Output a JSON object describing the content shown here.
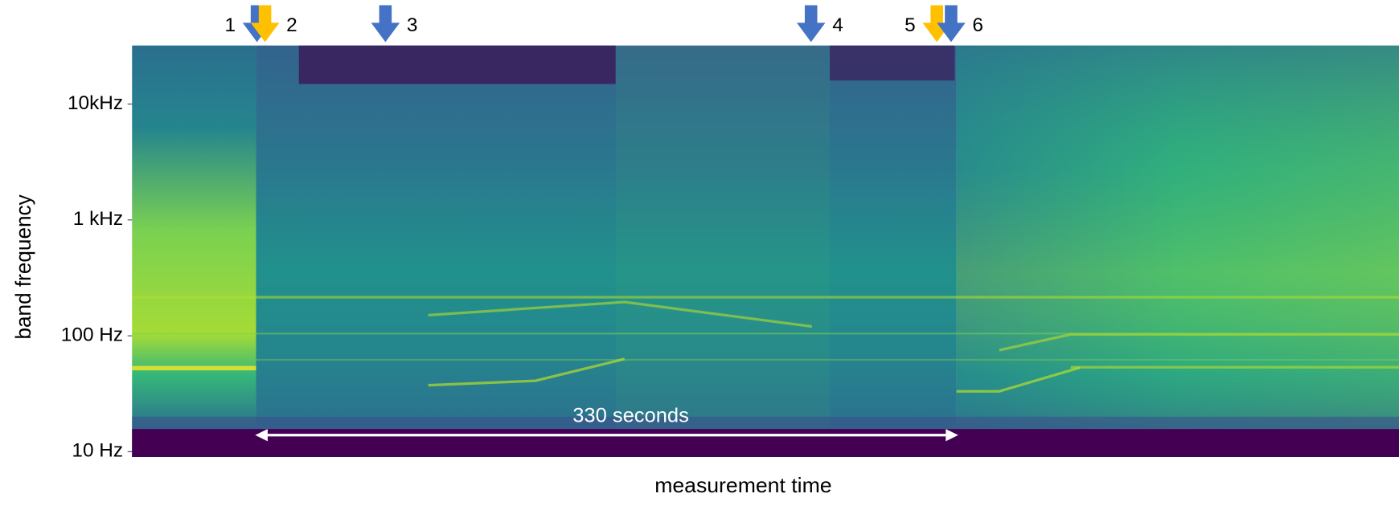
{
  "chart_data": {
    "type": "spectrogram",
    "x_label": "measurement time",
    "y_label": "band frequency",
    "y_log": true,
    "ylim": [
      9,
      32000
    ],
    "yticks": [
      {
        "value": 10,
        "label": "10 Hz"
      },
      {
        "value": 100,
        "label": "100 Hz"
      },
      {
        "value": 1000,
        "label": "1 kHz"
      },
      {
        "value": 10000,
        "label": "10kHz"
      }
    ],
    "markers": [
      {
        "label": "1",
        "color": "#4472c4"
      },
      {
        "label": "2",
        "color": "#ffc000"
      },
      {
        "label": "3",
        "color": "#4472c4"
      },
      {
        "label": "4",
        "color": "#4472c4"
      },
      {
        "label": "5",
        "color": "#ffc000"
      },
      {
        "label": "6",
        "color": "#4472c4"
      }
    ],
    "annotation": "330 seconds"
  }
}
